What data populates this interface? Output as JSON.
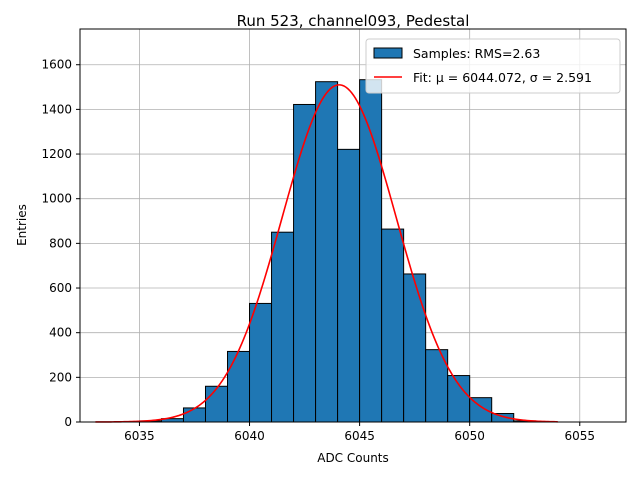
{
  "chart_data": {
    "type": "bar",
    "title": "Run 523, channel093, Pedestal",
    "xlabel": "ADC Counts",
    "ylabel": "Entries",
    "xlim": [
      6032.3,
      6057.1
    ],
    "ylim": [
      0,
      1760
    ],
    "xticks": [
      6035,
      6040,
      6045,
      6050,
      6055
    ],
    "yticks": [
      0,
      200,
      400,
      600,
      800,
      1000,
      1200,
      1400,
      1600
    ],
    "grid": true,
    "legend_position": "top-right",
    "histogram": {
      "name": "Samples: RMS=2.63",
      "bin_edges": [
        6034,
        6035,
        6036,
        6037,
        6038,
        6039,
        6040,
        6041,
        6042,
        6043,
        6044,
        6045,
        6046,
        6047,
        6048,
        6049,
        6050,
        6051,
        6052,
        6053
      ],
      "counts": [
        2,
        5,
        15,
        63,
        160,
        316,
        531,
        850,
        1422,
        1524,
        1221,
        1533,
        864,
        663,
        324,
        208,
        109,
        38,
        5
      ],
      "color": "#1f77b4",
      "edgecolor": "#000000"
    },
    "fit": {
      "name": "Fit: μ = 6044.072, σ = 2.591",
      "mu": 6044.072,
      "sigma": 2.591,
      "amplitude": 1510,
      "x_range": [
        6033,
        6054
      ],
      "color": "#ff0000"
    }
  }
}
